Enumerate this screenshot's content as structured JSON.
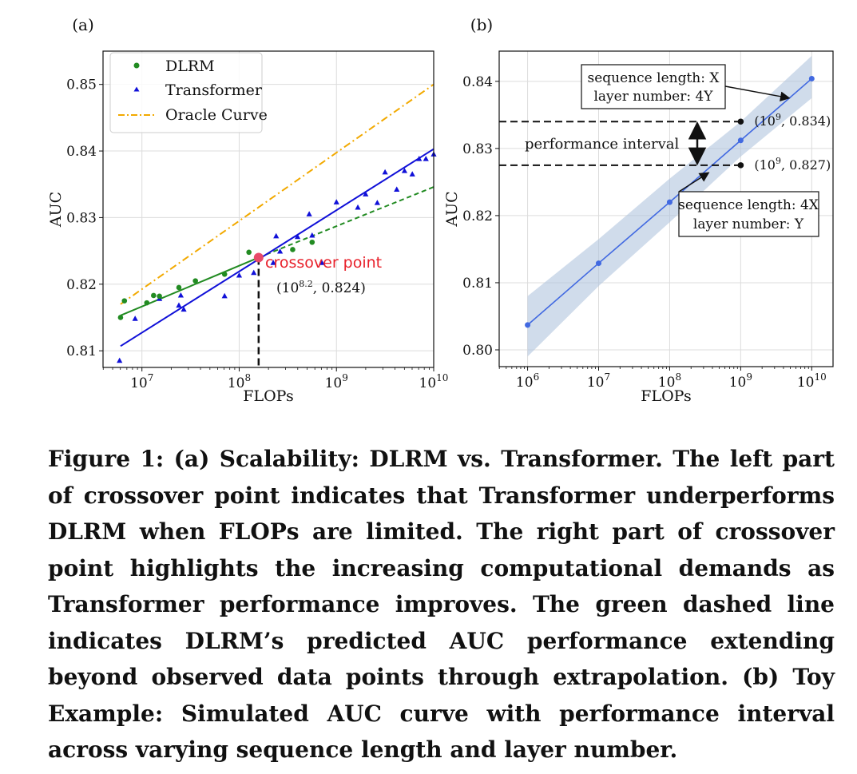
{
  "chart_data": [
    {
      "type": "scatter",
      "panel_label": "(a)",
      "xlabel": "FLOPs",
      "ylabel": "AUC",
      "xscale": "log",
      "xlim_log10": [
        6.6,
        10.0
      ],
      "ylim": [
        0.8075,
        0.855
      ],
      "xticks_log10": [
        7,
        8,
        9,
        10
      ],
      "xtick_labels": [
        {
          "base": "10",
          "exp": "7"
        },
        {
          "base": "10",
          "exp": "8"
        },
        {
          "base": "10",
          "exp": "9"
        },
        {
          "base": "10",
          "exp": "10"
        }
      ],
      "yticks": [
        0.81,
        0.82,
        0.83,
        0.84,
        0.85
      ],
      "ytick_labels": [
        "0.81",
        "0.82",
        "0.83",
        "0.84",
        "0.85"
      ],
      "grid": true,
      "legend_position": "top-left",
      "series": [
        {
          "name": "DLRM",
          "color": "#228b22",
          "marker": "circle",
          "points": [
            [
              6.78,
              0.815
            ],
            [
              6.82,
              0.8175
            ],
            [
              7.05,
              0.8172
            ],
            [
              7.12,
              0.8183
            ],
            [
              7.18,
              0.8182
            ],
            [
              7.38,
              0.8195
            ],
            [
              7.55,
              0.8205
            ],
            [
              7.85,
              0.8215
            ],
            [
              8.1,
              0.8248
            ],
            [
              8.55,
              0.8252
            ],
            [
              8.75,
              0.8263
            ]
          ],
          "fit": {
            "x_log10": [
              6.78,
              8.2
            ],
            "y": [
              0.8153,
              0.824
            ]
          },
          "extrapolation": {
            "x_log10": [
              8.2,
              10.0
            ],
            "y": [
              0.824,
              0.8346
            ]
          }
        },
        {
          "name": "Transformer",
          "color": "#1010d8",
          "marker": "triangle",
          "points": [
            [
              6.77,
              0.8085
            ],
            [
              6.93,
              0.8148
            ],
            [
              7.18,
              0.8178
            ],
            [
              7.38,
              0.8168
            ],
            [
              7.4,
              0.8183
            ],
            [
              7.43,
              0.8162
            ],
            [
              7.85,
              0.8182
            ],
            [
              8.0,
              0.8213
            ],
            [
              8.15,
              0.8217
            ],
            [
              8.35,
              0.8232
            ],
            [
              8.38,
              0.8272
            ],
            [
              8.42,
              0.8249
            ],
            [
              8.6,
              0.8271
            ],
            [
              8.72,
              0.8305
            ],
            [
              8.75,
              0.8273
            ],
            [
              8.85,
              0.8232
            ],
            [
              9.0,
              0.8323
            ],
            [
              9.22,
              0.8315
            ],
            [
              9.3,
              0.8335
            ],
            [
              9.42,
              0.8322
            ],
            [
              9.5,
              0.8368
            ],
            [
              9.62,
              0.8342
            ],
            [
              9.7,
              0.837
            ],
            [
              9.78,
              0.8365
            ],
            [
              9.85,
              0.8388
            ],
            [
              9.92,
              0.8388
            ],
            [
              10.0,
              0.8395
            ]
          ],
          "fit": {
            "x_log10": [
              6.78,
              10.0
            ],
            "y": [
              0.8107,
              0.8403
            ]
          }
        },
        {
          "name": "Oracle Curve",
          "color": "#f2a900",
          "marker": "none",
          "fit": {
            "x_log10": [
              6.78,
              10.0
            ],
            "y": [
              0.817,
              0.85
            ]
          }
        }
      ],
      "crossover": {
        "x_log10": 8.2,
        "y": 0.824,
        "label": "crossover point",
        "coord_label": "(10",
        "coord_exp": "8.2",
        "coord_suffix": ", 0.824)"
      }
    },
    {
      "type": "line",
      "panel_label": "(b)",
      "xlabel": "FLOPs",
      "ylabel": "AUC",
      "xscale": "log",
      "xlim_log10": [
        5.6,
        10.3
      ],
      "ylim": [
        0.7975,
        0.8445
      ],
      "xticks_log10": [
        6,
        7,
        8,
        9,
        10
      ],
      "xtick_labels": [
        {
          "base": "10",
          "exp": "6"
        },
        {
          "base": "10",
          "exp": "7"
        },
        {
          "base": "10",
          "exp": "8"
        },
        {
          "base": "10",
          "exp": "9"
        },
        {
          "base": "10",
          "exp": "10"
        }
      ],
      "yticks": [
        0.8,
        0.81,
        0.82,
        0.83,
        0.84
      ],
      "ytick_labels": [
        "0.80",
        "0.81",
        "0.82",
        "0.83",
        "0.84"
      ],
      "grid": true,
      "series": [
        {
          "name": "Simulated AUC",
          "color": "#4169e1",
          "x_log10": [
            6,
            7,
            8,
            9,
            10
          ],
          "y": [
            0.8037,
            0.8129,
            0.822,
            0.8312,
            0.8404
          ],
          "band_lower": [
            0.799,
            0.8095,
            0.819,
            0.8288,
            0.8375
          ],
          "band_upper": [
            0.808,
            0.8165,
            0.8255,
            0.834,
            0.8438
          ]
        }
      ],
      "reference_points": [
        {
          "x_log10": 9.0,
          "y": 0.834,
          "label_base": "(10",
          "label_exp": "9",
          "label_suffix": ", 0.834)"
        },
        {
          "x_log10": 9.0,
          "y": 0.8275,
          "label_base": "(10",
          "label_exp": "9",
          "label_suffix": ", 0.827)"
        }
      ],
      "interval_label": "performance interval",
      "annotation_boxes": [
        {
          "line1": "sequence length: X",
          "line2": "layer number: 4Y"
        },
        {
          "line1": "sequence length: 4X",
          "line2": "layer number: Y"
        }
      ]
    }
  ],
  "caption": "Figure 1: (a) Scalability: DLRM vs. Transformer. The left part of crossover point indicates that Transformer underperforms DLRM when FLOPs are limited. The right part of crossover point highlights the increasing computational demands as Transformer performance improves. The green dashed line indicates DLRM’s predicted AUC performance extending beyond observed data points through extrapolation. (b) Toy Example: Simulated AUC curve with performance interval across varying sequence length and layer number."
}
